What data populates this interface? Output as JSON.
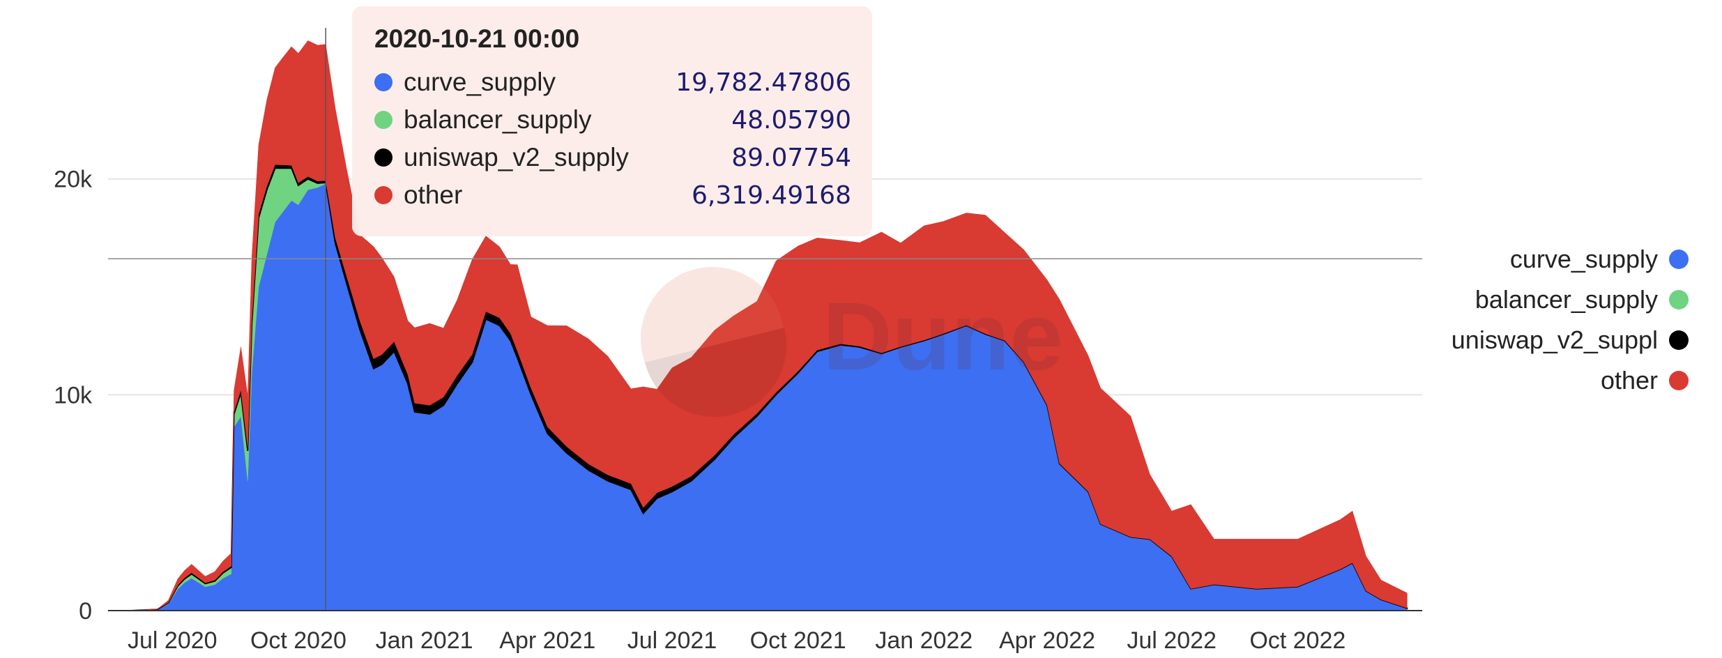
{
  "chart_data": {
    "type": "area",
    "stacked": true,
    "watermark": "Dune",
    "series": [
      {
        "name": "curve_supply",
        "color": "#3d6ff3"
      },
      {
        "name": "balancer_supply",
        "color": "#6fd382"
      },
      {
        "name": "uniswap_v2_supply",
        "color": "#000000"
      },
      {
        "name": "other",
        "color": "#d93a32"
      }
    ],
    "x": [
      "2020-06-01",
      "2020-06-20",
      "2020-06-28",
      "2020-07-05",
      "2020-07-10",
      "2020-07-15",
      "2020-07-20",
      "2020-07-25",
      "2020-08-01",
      "2020-08-07",
      "2020-08-13",
      "2020-08-15",
      "2020-08-20",
      "2020-08-25",
      "2020-08-28",
      "2020-09-02",
      "2020-09-08",
      "2020-09-14",
      "2020-09-20",
      "2020-09-26",
      "2020-10-01",
      "2020-10-08",
      "2020-10-15",
      "2020-10-21",
      "2020-10-28",
      "2020-11-05",
      "2020-11-15",
      "2020-11-25",
      "2020-12-01",
      "2020-12-10",
      "2020-12-20",
      "2020-12-25",
      "2021-01-05",
      "2021-01-15",
      "2021-01-25",
      "2021-02-05",
      "2021-02-15",
      "2021-02-25",
      "2021-03-05",
      "2021-03-10",
      "2021-03-20",
      "2021-04-01",
      "2021-04-15",
      "2021-05-01",
      "2021-05-15",
      "2021-06-01",
      "2021-06-10",
      "2021-06-20",
      "2021-07-01",
      "2021-07-15",
      "2021-08-01",
      "2021-08-15",
      "2021-09-01",
      "2021-09-15",
      "2021-10-01",
      "2021-10-15",
      "2021-11-01",
      "2021-11-15",
      "2021-12-01",
      "2021-12-15",
      "2022-01-01",
      "2022-01-15",
      "2022-02-01",
      "2022-02-15",
      "2022-03-01",
      "2022-03-15",
      "2022-04-01",
      "2022-04-10",
      "2022-05-01",
      "2022-05-10",
      "2022-06-01",
      "2022-06-15",
      "2022-07-01",
      "2022-07-15",
      "2022-08-01",
      "2022-09-01",
      "2022-10-01",
      "2022-11-01",
      "2022-11-10",
      "2022-11-20",
      "2022-12-01",
      "2022-12-20"
    ],
    "values": {
      "curve_supply": [
        0,
        50,
        300,
        1000,
        1300,
        1500,
        1300,
        1100,
        1200,
        1500,
        1700,
        8500,
        9000,
        6000,
        11000,
        15000,
        16500,
        18000,
        18500,
        19000,
        18800,
        19500,
        19600,
        19782,
        17000,
        15200,
        13000,
        11200,
        11400,
        12000,
        10500,
        9200,
        9100,
        9500,
        10500,
        11500,
        13500,
        13200,
        12500,
        11700,
        10000,
        8200,
        7300,
        6500,
        6000,
        5600,
        4500,
        5200,
        5500,
        6000,
        7000,
        8000,
        9000,
        10000,
        11000,
        12000,
        12300,
        12200,
        11900,
        12200,
        12500,
        12800,
        13200,
        12800,
        12500,
        11500,
        9500,
        6800,
        5500,
        4000,
        3400,
        3300,
        2500,
        1000,
        1200,
        1000,
        1100,
        1900,
        2200,
        900,
        500,
        100
      ],
      "balancer_supply": [
        0,
        5,
        60,
        150,
        180,
        200,
        180,
        150,
        170,
        250,
        300,
        600,
        1100,
        1400,
        2300,
        3200,
        3000,
        2500,
        2000,
        1500,
        900,
        500,
        200,
        48,
        30,
        20,
        15,
        15,
        12,
        12,
        10,
        10,
        10,
        10,
        10,
        10,
        10,
        10,
        10,
        10,
        10,
        10,
        10,
        10,
        10,
        10,
        10,
        10,
        10,
        10,
        10,
        10,
        10,
        10,
        10,
        10,
        10,
        10,
        10,
        10,
        10,
        10,
        10,
        10,
        10,
        10,
        10,
        10,
        10,
        10,
        10,
        10,
        10,
        10,
        10,
        10,
        10,
        10,
        10,
        10,
        10,
        10
      ],
      "uniswap_v2_supply": [
        0,
        2,
        15,
        30,
        40,
        50,
        40,
        35,
        40,
        50,
        60,
        100,
        120,
        150,
        160,
        180,
        170,
        160,
        150,
        130,
        120,
        110,
        100,
        89,
        250,
        320,
        400,
        450,
        450,
        450,
        420,
        400,
        400,
        380,
        380,
        360,
        350,
        350,
        330,
        320,
        300,
        300,
        290,
        280,
        280,
        270,
        260,
        250,
        240,
        220,
        180,
        150,
        120,
        100,
        80,
        60,
        50,
        40,
        30,
        25,
        20,
        20,
        15,
        15,
        10,
        10,
        10,
        10,
        5,
        5,
        5,
        5,
        5,
        5,
        5,
        5,
        5,
        5,
        5,
        5,
        5,
        5
      ],
      "other": [
        0,
        20,
        100,
        300,
        350,
        400,
        350,
        300,
        400,
        500,
        600,
        1000,
        2000,
        2400,
        2900,
        3200,
        4000,
        4500,
        5000,
        5500,
        6000,
        6300,
        6300,
        6319,
        6000,
        5000,
        4000,
        5200,
        4500,
        3000,
        2500,
        3500,
        3800,
        3200,
        3500,
        4400,
        3500,
        3300,
        3200,
        4000,
        3300,
        4700,
        5600,
        5800,
        5500,
        4400,
        5600,
        4800,
        5500,
        5500,
        5800,
        5500,
        5200,
        6100,
        5800,
        5200,
        4800,
        4800,
        5600,
        4800,
        5300,
        5200,
        5200,
        5500,
        5000,
        5200,
        5800,
        7600,
        6300,
        6300,
        5600,
        3000,
        2100,
        3900,
        2100,
        2300,
        2200,
        2300,
        2400,
        1600,
        900,
        700
      ]
    },
    "ylim": [
      0,
      27000
    ],
    "yticks": [
      {
        "value": 0,
        "label": "0"
      },
      {
        "value": 10000,
        "label": "10k"
      },
      {
        "value": 20000,
        "label": "20k"
      }
    ],
    "xticks": [
      {
        "value": "2020-07-01",
        "label": "Jul 2020"
      },
      {
        "value": "2020-10-01",
        "label": "Oct 2020"
      },
      {
        "value": "2021-01-01",
        "label": "Jan 2021"
      },
      {
        "value": "2021-04-01",
        "label": "Apr 2021"
      },
      {
        "value": "2021-07-01",
        "label": "Jul 2021"
      },
      {
        "value": "2021-10-01",
        "label": "Oct 2021"
      },
      {
        "value": "2022-01-01",
        "label": "Jan 2022"
      },
      {
        "value": "2022-04-01",
        "label": "Apr 2022"
      },
      {
        "value": "2022-07-01",
        "label": "Jul 2022"
      },
      {
        "value": "2022-10-01",
        "label": "Oct 2022"
      }
    ],
    "grid": true,
    "legend_position": "right",
    "crosshair": {
      "x": "2020-10-21",
      "y": 16300
    },
    "tooltip": {
      "title": "2020-10-21 00:00",
      "rows": [
        {
          "name": "curve_supply",
          "value": "19,782.47806",
          "color": "#3d6ff3"
        },
        {
          "name": "balancer_supply",
          "value": "48.05790",
          "color": "#6fd382"
        },
        {
          "name": "uniswap_v2_supply",
          "value": "89.07754",
          "color": "#000000"
        },
        {
          "name": "other",
          "value": "6,319.49168",
          "color": "#d93a32"
        }
      ]
    }
  },
  "legend": {
    "items": [
      {
        "label": "curve_supply",
        "color": "#3d6ff3"
      },
      {
        "label": "balancer_supply",
        "color": "#6fd382"
      },
      {
        "label": "uniswap_v2_suppl",
        "color": "#000000"
      },
      {
        "label": "other",
        "color": "#d93a32"
      }
    ]
  }
}
